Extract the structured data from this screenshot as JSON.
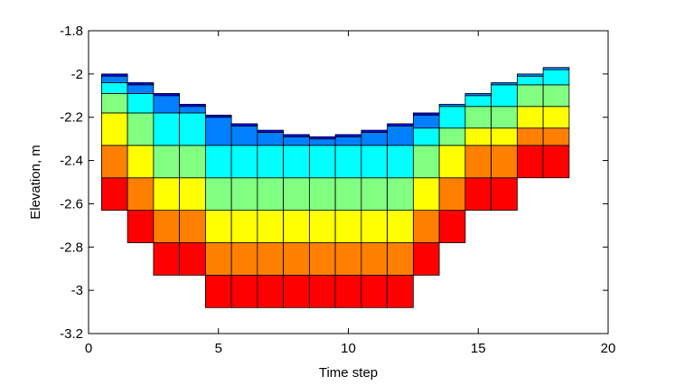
{
  "chart_data": {
    "type": "stacked-bar",
    "xlabel": "Time step",
    "ylabel": "Elevation, m",
    "xlim": [
      0,
      20
    ],
    "ylim": [
      -3.2,
      -1.8
    ],
    "xticks": [
      0,
      5,
      10,
      15,
      20
    ],
    "yticks": [
      -1.8,
      -2,
      -2.2,
      -2.4,
      -2.6,
      -2.8,
      -3,
      -3.2
    ],
    "grid": false,
    "bar_width": 1,
    "layer_colors": [
      "#ff0000",
      "#ff8000",
      "#ffff00",
      "#80ff80",
      "#00ffff",
      "#0080ff",
      "#0000ff",
      "#00008f"
    ],
    "bars": [
      {
        "x": 1,
        "bottom": -2.63,
        "tops": [
          -2.48,
          -2.33,
          -2.18,
          -2.09,
          -2.04,
          -2.01,
          -2.0
        ]
      },
      {
        "x": 2,
        "bottom": -2.78,
        "tops": [
          -2.63,
          -2.48,
          -2.33,
          -2.18,
          -2.09,
          -2.05,
          -2.04
        ]
      },
      {
        "x": 3,
        "bottom": -2.93,
        "tops": [
          -2.78,
          -2.63,
          -2.48,
          -2.33,
          -2.18,
          -2.1,
          -2.09
        ]
      },
      {
        "x": 4,
        "bottom": -2.93,
        "tops": [
          -2.78,
          -2.63,
          -2.48,
          -2.33,
          -2.18,
          -2.15,
          -2.14
        ]
      },
      {
        "x": 5,
        "bottom": -3.08,
        "tops": [
          -2.93,
          -2.78,
          -2.63,
          -2.48,
          -2.33,
          -2.2,
          -2.19
        ]
      },
      {
        "x": 6,
        "bottom": -3.08,
        "tops": [
          -2.93,
          -2.78,
          -2.63,
          -2.48,
          -2.33,
          -2.24,
          -2.23
        ]
      },
      {
        "x": 7,
        "bottom": -3.08,
        "tops": [
          -2.93,
          -2.78,
          -2.63,
          -2.48,
          -2.33,
          -2.27,
          -2.26
        ]
      },
      {
        "x": 8,
        "bottom": -3.08,
        "tops": [
          -2.93,
          -2.78,
          -2.63,
          -2.48,
          -2.33,
          -2.29,
          -2.28
        ]
      },
      {
        "x": 9,
        "bottom": -3.08,
        "tops": [
          -2.93,
          -2.78,
          -2.63,
          -2.48,
          -2.33,
          -2.3,
          -2.29
        ]
      },
      {
        "x": 10,
        "bottom": -3.08,
        "tops": [
          -2.93,
          -2.78,
          -2.63,
          -2.48,
          -2.33,
          -2.29,
          -2.28
        ]
      },
      {
        "x": 11,
        "bottom": -3.08,
        "tops": [
          -2.93,
          -2.78,
          -2.63,
          -2.48,
          -2.33,
          -2.27,
          -2.26
        ]
      },
      {
        "x": 12,
        "bottom": -3.08,
        "tops": [
          -2.93,
          -2.78,
          -2.63,
          -2.48,
          -2.33,
          -2.24,
          -2.23
        ]
      },
      {
        "x": 13,
        "bottom": -2.93,
        "tops": [
          -2.78,
          -2.63,
          -2.48,
          -2.33,
          -2.25,
          -2.19,
          -2.18
        ]
      },
      {
        "x": 14,
        "bottom": -2.78,
        "tops": [
          -2.63,
          -2.48,
          -2.33,
          -2.25,
          -2.15,
          -2.14
        ]
      },
      {
        "x": 15,
        "bottom": -2.63,
        "tops": [
          -2.48,
          -2.33,
          -2.25,
          -2.15,
          -2.1,
          -2.09
        ]
      },
      {
        "x": 16,
        "bottom": -2.63,
        "tops": [
          -2.48,
          -2.33,
          -2.25,
          -2.15,
          -2.05,
          -2.04
        ]
      },
      {
        "x": 17,
        "bottom": -2.48,
        "tops": [
          -2.33,
          -2.25,
          -2.15,
          -2.05,
          -2.01,
          -2.0
        ]
      },
      {
        "x": 18,
        "bottom": -2.48,
        "tops": [
          -2.33,
          -2.25,
          -2.15,
          -2.05,
          -1.98,
          -1.97
        ]
      }
    ]
  }
}
